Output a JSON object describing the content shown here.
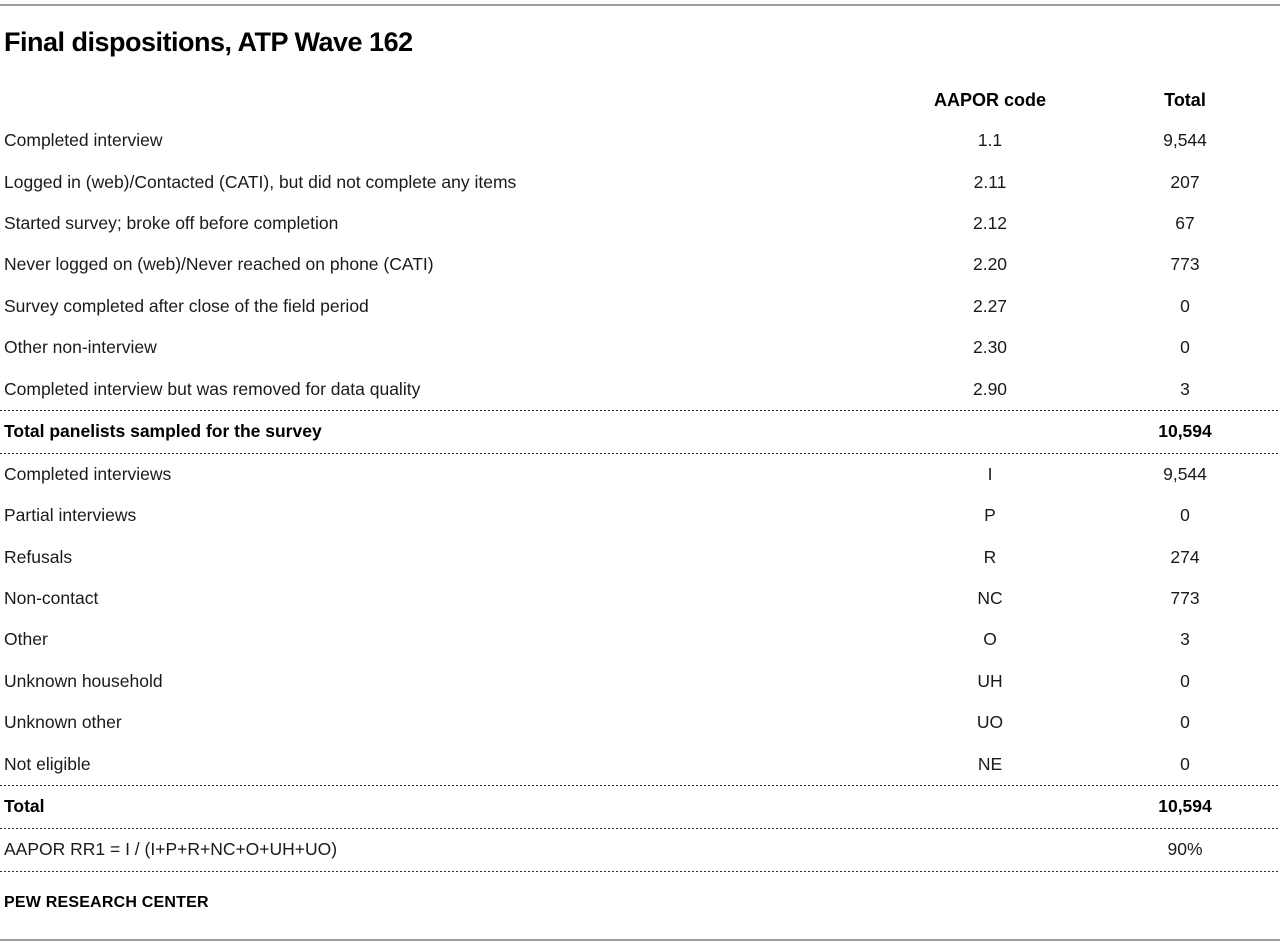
{
  "title": "Final dispositions, ATP Wave 162",
  "footer": {
    "source": "PEW RESEARCH CENTER"
  },
  "chart_data": {
    "type": "table",
    "title": "Final dispositions, ATP Wave 162",
    "columns": {
      "label": "",
      "code": "AAPOR code",
      "total": "Total"
    },
    "rows_section1": [
      {
        "label": "Completed interview",
        "code": "1.1",
        "total": "9,544"
      },
      {
        "label": "Logged in (web)/Contacted (CATI), but did not complete any items",
        "code": "2.11",
        "total": "207"
      },
      {
        "label": "Started survey; broke off before completion",
        "code": "2.12",
        "total": "67"
      },
      {
        "label": "Never logged on (web)/Never reached on phone (CATI)",
        "code": "2.20",
        "total": "773"
      },
      {
        "label": "Survey completed after close of the field period",
        "code": "2.27",
        "total": "0"
      },
      {
        "label": "Other non-interview",
        "code": "2.30",
        "total": "0"
      },
      {
        "label": "Completed interview but was removed for data quality",
        "code": "2.90",
        "total": "3"
      }
    ],
    "total_sampled": {
      "label": "Total panelists sampled for the survey",
      "code": "",
      "total": "10,594"
    },
    "rows_section2": [
      {
        "label": "Completed interviews",
        "code": "I",
        "total": "9,544"
      },
      {
        "label": "Partial interviews",
        "code": "P",
        "total": "0"
      },
      {
        "label": "Refusals",
        "code": "R",
        "total": "274"
      },
      {
        "label": "Non-contact",
        "code": "NC",
        "total": "773"
      },
      {
        "label": "Other",
        "code": "O",
        "total": "3"
      },
      {
        "label": "Unknown household",
        "code": "UH",
        "total": "0"
      },
      {
        "label": "Unknown other",
        "code": "UO",
        "total": "0"
      },
      {
        "label": "Not eligible",
        "code": "NE",
        "total": "0"
      }
    ],
    "grand_total": {
      "label": "Total",
      "code": "",
      "total": "10,594"
    },
    "response_rate": {
      "label": "AAPOR RR1 = I / (I+P+R+NC+O+UH+UO)",
      "code": "",
      "total": "90%"
    }
  }
}
